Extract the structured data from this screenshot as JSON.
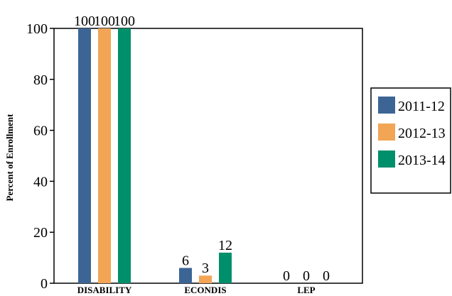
{
  "chart_data": {
    "type": "bar",
    "title": "",
    "xlabel": "",
    "ylabel": "Percent of Enrollment",
    "ylim": [
      0,
      100
    ],
    "yticks": [
      0,
      20,
      40,
      60,
      80,
      100
    ],
    "grid": false,
    "legend_position": "right",
    "categories": [
      "DISABILITY",
      "ECONDIS",
      "LEP"
    ],
    "series": [
      {
        "name": "2011-12",
        "color": "#3c6596",
        "values": [
          100,
          6,
          0
        ]
      },
      {
        "name": "2012-13",
        "color": "#f2a555",
        "values": [
          100,
          3,
          0
        ]
      },
      {
        "name": "2013-14",
        "color": "#008f6b",
        "values": [
          100,
          12,
          0
        ]
      }
    ]
  }
}
